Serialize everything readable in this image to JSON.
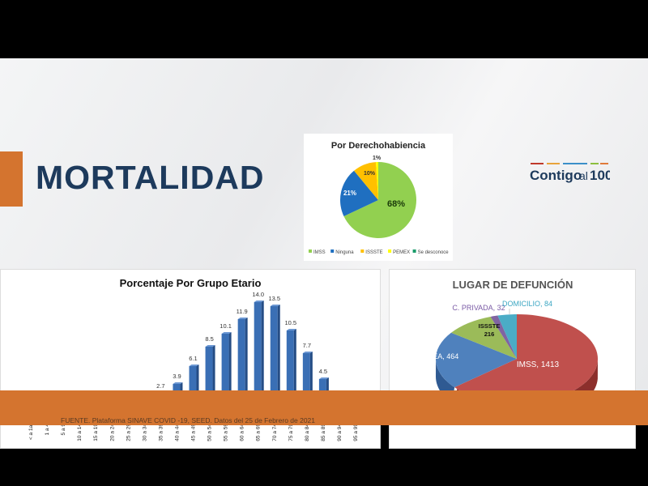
{
  "header": {
    "title": "MORTALIDAD",
    "logo": "Contigo al 100",
    "colors": {
      "accent": "#d4742f",
      "title": "#1d3a5c"
    }
  },
  "footer": {
    "source": "FUENTE. Plataforma SINAVE COVID -19, SEED. Datos del 25 de Febrero de 2021"
  },
  "chart_data": [
    {
      "type": "pie",
      "title": "Por Derechohabiencia",
      "categories": [
        "IMSS",
        "Ninguna",
        "ISSSTE",
        "PEMEX",
        "Se desconoce"
      ],
      "values": [
        68,
        21,
        10,
        1,
        0
      ],
      "labels": [
        "68%",
        "21%",
        "10%",
        "1%",
        ""
      ],
      "colors": [
        "#92d050",
        "#1f6fc0",
        "#ffc000",
        "#ffff00",
        "#1a9c6a"
      ],
      "legend": "bottom"
    },
    {
      "type": "bar",
      "title": "Porcentaje Por Grupo Etario",
      "categories": [
        "< a 1a.",
        "1 a 4",
        "5 a 9",
        "10 a 14",
        "15 a 19",
        "20 a 24",
        "25 a 29",
        "30 a 34",
        "35 a 39",
        "40 a 44",
        "45 a 49",
        "50 a 54",
        "55 a 59",
        "60 a 64",
        "65 a 69",
        "70 a 74",
        "75 a 79",
        "80 a 84",
        "85 a 89",
        "90 a 94",
        "95 a 99"
      ],
      "values": [
        0.1,
        0.1,
        0.0,
        0.2,
        0.4,
        0.6,
        1.4,
        1.9,
        2.7,
        3.9,
        6.1,
        8.5,
        10.1,
        11.9,
        14.0,
        13.5,
        10.5,
        7.7,
        4.5,
        1.2,
        0.5
      ],
      "color": "#3a6fb5",
      "grid": false
    },
    {
      "type": "pie",
      "title": "LUGAR DE DEFUNCIÓN",
      "categories": [
        "IMSS",
        "ISSEA",
        "ISSSTE",
        "C. PRIVADA",
        "DOMICILIO"
      ],
      "values": [
        1413,
        464,
        216,
        32,
        84
      ],
      "labels": [
        "IMSS, 1413",
        "ISSEA, 464",
        "ISSSTE 216",
        "C. PRIVADA, 32",
        "DOMICILIO, 84"
      ],
      "colors": [
        "#c0504d",
        "#4f81bd",
        "#9bbb59",
        "#8064a2",
        "#4bacc6"
      ],
      "style": "3d"
    }
  ]
}
